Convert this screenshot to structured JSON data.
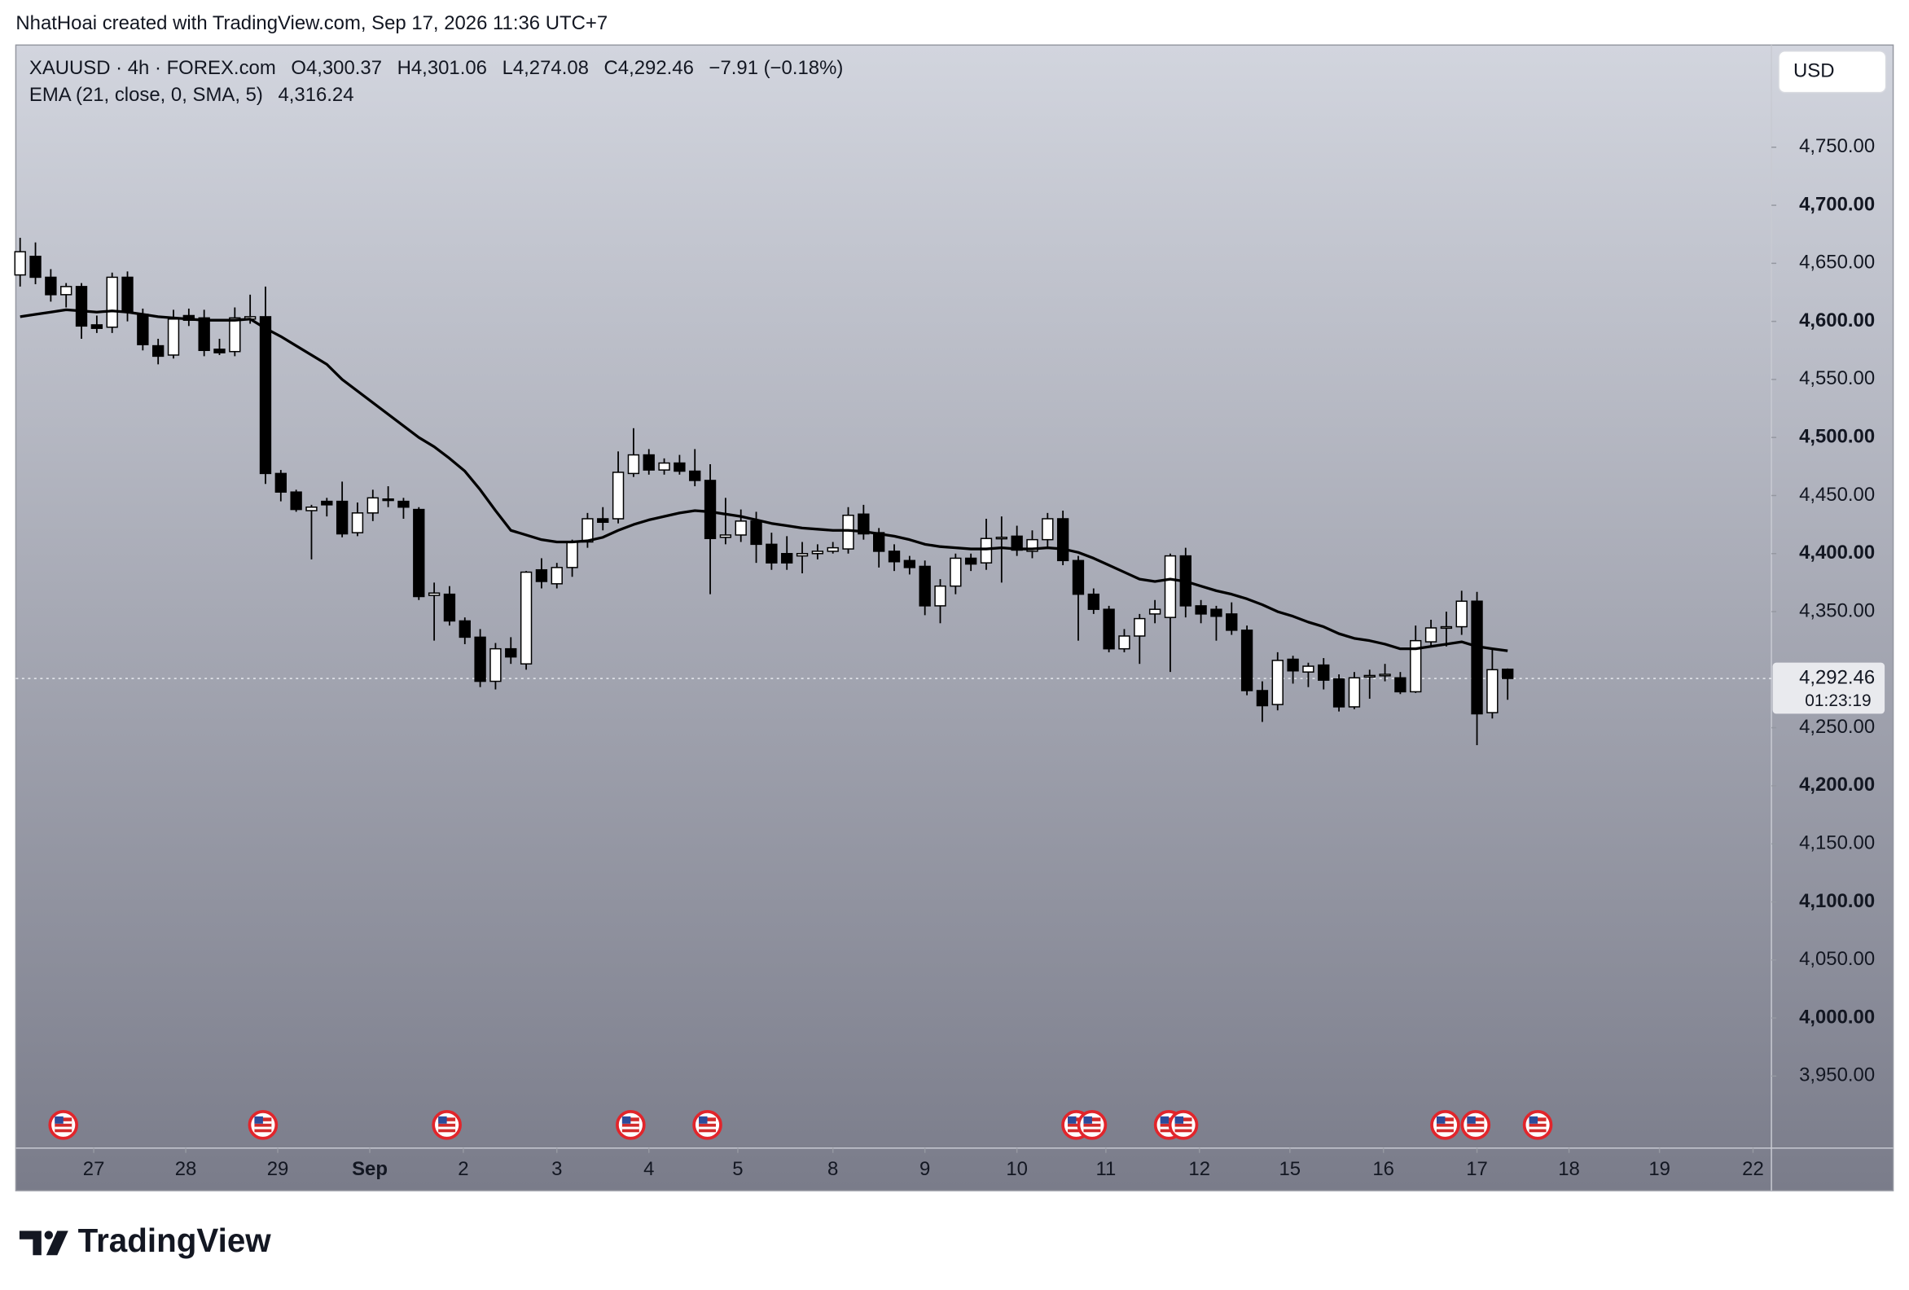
{
  "header": "NhatHoai created with TradingView.com, Sep 17, 2026 11:36 UTC+7",
  "brand": "TradingView",
  "chart_data": {
    "type": "candlestick",
    "symbol": "XAUUSD · 4h · FOREX.com",
    "ohlc": [
      "O4,300.37",
      "H4,301.06",
      "L4,274.08",
      "C4,292.46",
      "−7.91 (−0.18%)"
    ],
    "currency": "USD",
    "up_color": "#ffffff",
    "down_color": "#000000",
    "open": [
      4640,
      4656,
      4638,
      4623,
      4630,
      4597,
      4595,
      4638,
      4606,
      4579,
      4571,
      4605,
      4603,
      4576,
      4574,
      4602,
      4604,
      4469,
      4453,
      4437,
      4445,
      4445,
      4418,
      4435,
      4447,
      4445,
      4438,
      4364,
      4365,
      4342,
      4328,
      4290,
      4318,
      4305,
      4386,
      4374,
      4388,
      4410,
      4430,
      4430,
      4469,
      4485,
      4472,
      4478,
      4471,
      4463,
      4414,
      4416,
      4428,
      4408,
      4400,
      4398,
      4400,
      4402,
      4404,
      4434,
      4418,
      4402,
      4394,
      4389,
      4355,
      4372,
      4396,
      4392,
      4413,
      4415,
      4402,
      4412,
      4430,
      4394,
      4365,
      4352,
      4318,
      4329,
      4348,
      4345,
      4398,
      4355,
      4352,
      4348,
      4334,
      4282,
      4270,
      4309,
      4298,
      4304,
      4292,
      4268,
      4294,
      4295,
      4293,
      4281,
      4324,
      4336,
      4337,
      4359,
      4263,
      4300.37
    ],
    "high": [
      4672,
      4668,
      4645,
      4633,
      4633,
      4605,
      4642,
      4643,
      4611,
      4585,
      4610,
      4611,
      4610,
      4585,
      4612,
      4623,
      4630,
      4472,
      4455,
      4442,
      4448,
      4462,
      4444,
      4455,
      4458,
      4448,
      4440,
      4375,
      4372,
      4345,
      4335,
      4323,
      4328,
      4385,
      4396,
      4392,
      4412,
      4435,
      4440,
      4488,
      4508,
      4490,
      4482,
      4485,
      4490,
      4477,
      4448,
      4438,
      4436,
      4418,
      4415,
      4410,
      4408,
      4410,
      4440,
      4442,
      4422,
      4408,
      4398,
      4394,
      4378,
      4400,
      4400,
      4430,
      4432,
      4424,
      4420,
      4435,
      4437,
      4398,
      4370,
      4355,
      4335,
      4348,
      4360,
      4400,
      4405,
      4360,
      4355,
      4358,
      4338,
      4290,
      4315,
      4312,
      4306,
      4310,
      4296,
      4298,
      4300,
      4305,
      4298,
      4338,
      4343,
      4350,
      4368,
      4367,
      4318,
      4301.06
    ],
    "low": [
      4630,
      4632,
      4617,
      4612,
      4585,
      4590,
      4590,
      4600,
      4575,
      4563,
      4568,
      4596,
      4570,
      4571,
      4570,
      4598,
      4460,
      4445,
      4436,
      4395,
      4432,
      4414,
      4415,
      4428,
      4440,
      4430,
      4360,
      4325,
      4338,
      4322,
      4285,
      4283,
      4305,
      4300,
      4370,
      4370,
      4380,
      4405,
      4420,
      4426,
      4466,
      4468,
      4468,
      4468,
      4458,
      4365,
      4408,
      4410,
      4392,
      4386,
      4386,
      4383,
      4395,
      4400,
      4400,
      4412,
      4388,
      4385,
      4382,
      4347,
      4340,
      4365,
      4385,
      4386,
      4375,
      4398,
      4396,
      4406,
      4390,
      4325,
      4348,
      4315,
      4315,
      4305,
      4340,
      4298,
      4345,
      4340,
      4325,
      4330,
      4278,
      4255,
      4265,
      4288,
      4285,
      4283,
      4264,
      4266,
      4275,
      4290,
      4279,
      4280,
      4320,
      4320,
      4330,
      4235,
      4258,
      4274.08
    ],
    "close": [
      4660,
      4638,
      4623,
      4630,
      4596,
      4594,
      4638,
      4608,
      4580,
      4570,
      4602,
      4601,
      4575,
      4573,
      4603,
      4604,
      4469,
      4453,
      4438,
      4440,
      4442,
      4417,
      4435,
      4448,
      4446,
      4440,
      4363,
      4366,
      4342,
      4328,
      4290,
      4318,
      4311,
      4384,
      4376,
      4388,
      4410,
      4430,
      4427,
      4470,
      4485,
      4472,
      4478,
      4471,
      4463,
      4413,
      4416,
      4428,
      4408,
      4392,
      4392,
      4400,
      4402,
      4405,
      4433,
      4417,
      4402,
      4393,
      4388,
      4355,
      4372,
      4396,
      4391,
      4413,
      4414,
      4403,
      4412,
      4430,
      4394,
      4365,
      4352,
      4318,
      4329,
      4344,
      4352,
      4398,
      4355,
      4348,
      4346,
      4334,
      4282,
      4269,
      4308,
      4299,
      4303,
      4291,
      4268,
      4293,
      4295,
      4296,
      4281,
      4325,
      4336,
      4337,
      4359,
      4262,
      4300,
      4292.46
    ],
    "ema": {
      "name": "EMA (21, close, 0, SMA, 5)",
      "value_label": "4,316.24",
      "color": "#000000",
      "values": [
        4604,
        4606,
        4608,
        4610,
        4609,
        4608,
        4609,
        4608,
        4606,
        4604,
        4603,
        4602,
        4601,
        4601,
        4601,
        4602,
        4594,
        4587,
        4579,
        4571,
        4563,
        4550,
        4540,
        4530,
        4520,
        4510,
        4500,
        4492,
        4482,
        4471,
        4455,
        4437,
        4420,
        4416,
        4412,
        4410,
        4410,
        4411,
        4414,
        4420,
        4425,
        4429,
        4432,
        4435,
        4437,
        4436,
        4434,
        4432,
        4429,
        4426,
        4424,
        4422,
        4421,
        4420,
        4420,
        4419,
        4417,
        4415,
        4412,
        4408,
        4406,
        4405,
        4404,
        4404,
        4405,
        4404,
        4404,
        4405,
        4404,
        4401,
        4396,
        4390,
        4384,
        4378,
        4376,
        4378,
        4376,
        4372,
        4368,
        4365,
        4361,
        4356,
        4350,
        4346,
        4341,
        4337,
        4331,
        4327,
        4325,
        4322,
        4318,
        4318,
        4320,
        4322,
        4324,
        4320,
        4318,
        4316.24
      ]
    },
    "last_price": {
      "value": 4292.46,
      "label": "4,292.46"
    },
    "countdown": "01:23:19",
    "ylim": [
      3888,
      4838
    ],
    "yticks": [
      {
        "value": 3950,
        "label": "3,950.00"
      },
      {
        "value": 4000,
        "label": "4,000.00"
      },
      {
        "value": 4050,
        "label": "4,050.00"
      },
      {
        "value": 4100,
        "label": "4,100.00"
      },
      {
        "value": 4150,
        "label": "4,150.00"
      },
      {
        "value": 4200,
        "label": "4,200.00"
      },
      {
        "value": 4250,
        "label": "4,250.00"
      },
      {
        "value": 4350,
        "label": "4,350.00"
      },
      {
        "value": 4400,
        "label": "4,400.00"
      },
      {
        "value": 4450,
        "label": "4,450.00"
      },
      {
        "value": 4500,
        "label": "4,500.00"
      },
      {
        "value": 4550,
        "label": "4,550.00"
      },
      {
        "value": 4600,
        "label": "4,600.00"
      },
      {
        "value": 4650,
        "label": "4,650.00"
      },
      {
        "value": 4700,
        "label": "4,700.00"
      },
      {
        "value": 4750,
        "label": "4,750.00"
      }
    ],
    "xlim": [
      -0.28,
      114.2
    ],
    "xticks": [
      {
        "value": 4.8,
        "label": "27"
      },
      {
        "value": 10.8,
        "label": "28"
      },
      {
        "value": 16.8,
        "label": "29"
      },
      {
        "value": 22.8,
        "label": "Sep"
      },
      {
        "value": 28.9,
        "label": "2"
      },
      {
        "value": 35.0,
        "label": "3"
      },
      {
        "value": 41.0,
        "label": "4"
      },
      {
        "value": 46.8,
        "label": "5"
      },
      {
        "value": 53.0,
        "label": "8"
      },
      {
        "value": 59.0,
        "label": "9"
      },
      {
        "value": 65.0,
        "label": "10"
      },
      {
        "value": 70.8,
        "label": "11"
      },
      {
        "value": 76.9,
        "label": "12"
      },
      {
        "value": 82.8,
        "label": "15"
      },
      {
        "value": 88.9,
        "label": "16"
      },
      {
        "value": 95.0,
        "label": "17"
      },
      {
        "value": 101.0,
        "label": "18"
      },
      {
        "value": 106.9,
        "label": "19"
      },
      {
        "value": 113.0,
        "label": "22"
      }
    ]
  }
}
